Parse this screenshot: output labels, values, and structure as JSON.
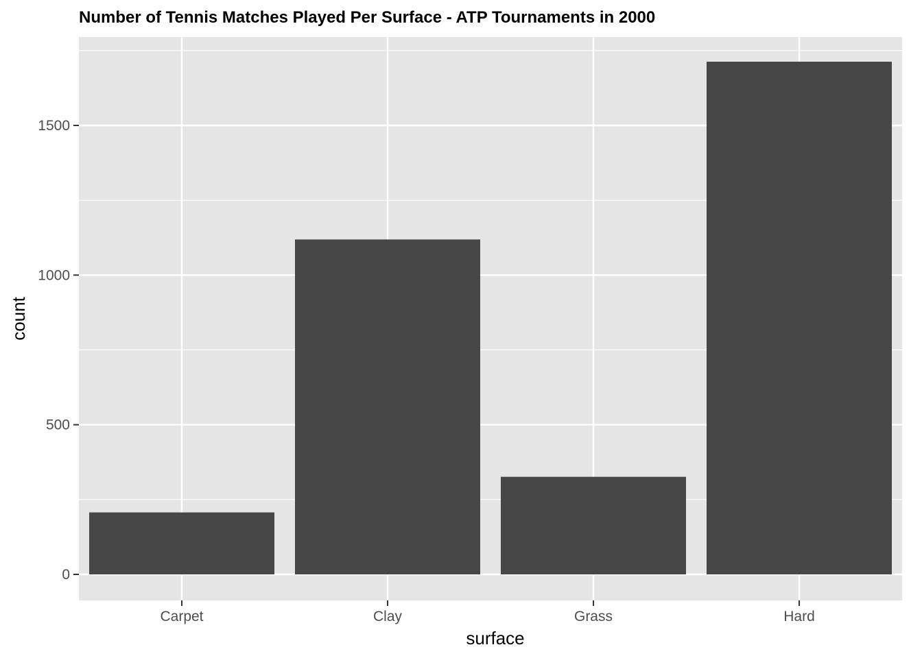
{
  "chart_data": {
    "type": "bar",
    "title": "Number of Tennis Matches Played Per Surface - ATP Tournaments in 2000",
    "xlabel": "surface",
    "ylabel": "count",
    "categories": [
      "Carpet",
      "Clay",
      "Grass",
      "Hard"
    ],
    "values": [
      207,
      1119,
      326,
      1713
    ],
    "ylim": [
      -85,
      1800
    ],
    "yticks": [
      0,
      500,
      1000,
      1500
    ],
    "ytick_labels": [
      "0",
      "500",
      "1000",
      "1500"
    ],
    "grid": true,
    "legend": "none",
    "colors": {
      "bar": "#474747",
      "panel": "#e5e5e5",
      "grid": "#ffffff",
      "tick_text": "#4d4d4d"
    }
  }
}
